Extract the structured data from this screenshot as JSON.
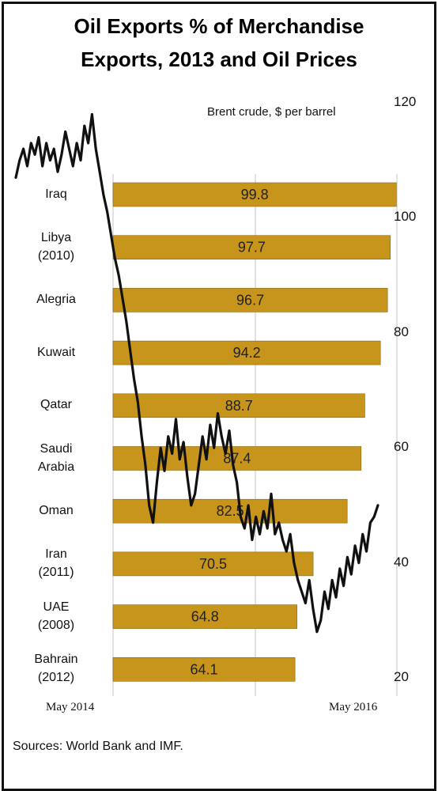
{
  "header": {
    "title_line1": "Oil Exports % of Merchandise",
    "title_line2": "Exports, 2013 and Oil Prices",
    "subtitle": "Brent crude,  $ per barrel"
  },
  "footer": {
    "source": "Sources: World Bank and IMF."
  },
  "chart_data": [
    {
      "type": "bar",
      "orientation": "horizontal",
      "title": "Oil Exports % of Merchandise Exports, 2013 and Oil Prices",
      "categories": [
        [
          "Iraq"
        ],
        [
          "Libya",
          "(2010)"
        ],
        [
          "Alegria"
        ],
        [
          "Kuwait"
        ],
        [
          "Qatar"
        ],
        [
          "Saudi",
          "Arabia"
        ],
        [
          "Oman"
        ],
        [
          "Iran",
          "(2011)"
        ],
        [
          "UAE",
          "(2008)"
        ],
        [
          "Bahrain",
          "(2012)"
        ]
      ],
      "values": [
        99.8,
        97.7,
        96.7,
        94.2,
        88.7,
        87.4,
        82.5,
        70.5,
        64.8,
        64.1
      ],
      "value_labels": [
        "99.8",
        "97.7",
        "96.7",
        "94.2",
        "88.7",
        "87.4",
        "82.5",
        "70.5",
        "64.8",
        "64.1"
      ],
      "xlim": [
        0,
        100
      ],
      "bar_color": "#c8951c"
    },
    {
      "type": "line",
      "ylabel": "Brent crude,  $ per barrel",
      "ylim": [
        20,
        120
      ],
      "yticks": [
        "120",
        "100",
        "80",
        "60",
        "40",
        "20"
      ],
      "x_tick_labels": [
        "May 2014",
        "May 2016"
      ],
      "line_color": "#111111",
      "y": [
        107,
        110,
        112,
        109,
        113,
        111,
        114,
        109,
        113,
        110,
        112,
        108,
        111,
        115,
        112,
        109,
        113,
        110,
        116,
        113,
        118,
        112,
        108,
        104,
        101,
        97,
        93,
        90,
        86,
        82,
        77,
        72,
        68,
        62,
        57,
        50,
        47,
        54,
        60,
        56,
        62,
        59,
        65,
        58,
        61,
        55,
        50,
        52,
        57,
        62,
        58,
        64,
        60,
        66,
        62,
        59,
        63,
        57,
        54,
        48,
        46,
        50,
        44,
        48,
        45,
        49,
        46,
        52,
        45,
        47,
        44,
        42,
        45,
        40,
        37,
        35,
        33,
        37,
        32,
        28,
        30,
        35,
        32,
        37,
        34,
        39,
        36,
        41,
        38,
        43,
        40,
        45,
        42,
        47,
        48,
        50
      ]
    }
  ]
}
